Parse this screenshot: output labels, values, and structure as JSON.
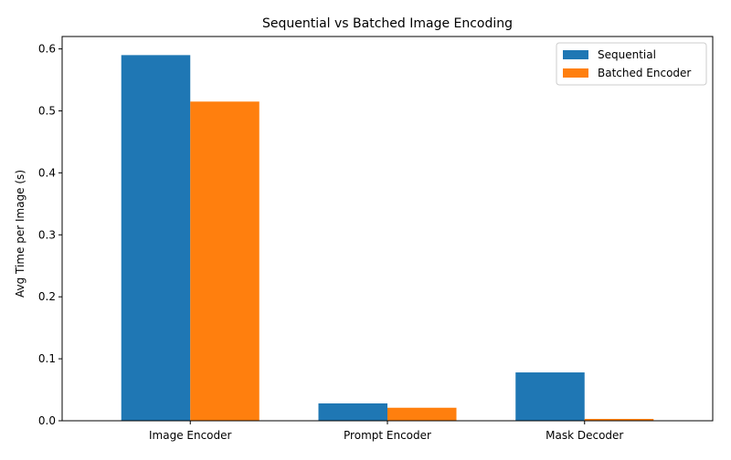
{
  "chart_data": {
    "type": "bar",
    "title": "Sequential vs Batched Image Encoding",
    "xlabel": "",
    "ylabel": "Avg Time per Image (s)",
    "categories": [
      "Image Encoder",
      "Prompt Encoder",
      "Mask Decoder"
    ],
    "series": [
      {
        "name": "Sequential",
        "values": [
          0.59,
          0.028,
          0.078
        ],
        "color": "#1f77b4"
      },
      {
        "name": "Batched Encoder",
        "values": [
          0.515,
          0.021,
          0.003
        ],
        "color": "#ff7f0e"
      }
    ],
    "ylim": [
      0,
      0.62
    ],
    "yticks": [
      "0.0",
      "0.1",
      "0.2",
      "0.3",
      "0.4",
      "0.5",
      "0.6"
    ],
    "grid": false,
    "legend_position": "top-right"
  }
}
